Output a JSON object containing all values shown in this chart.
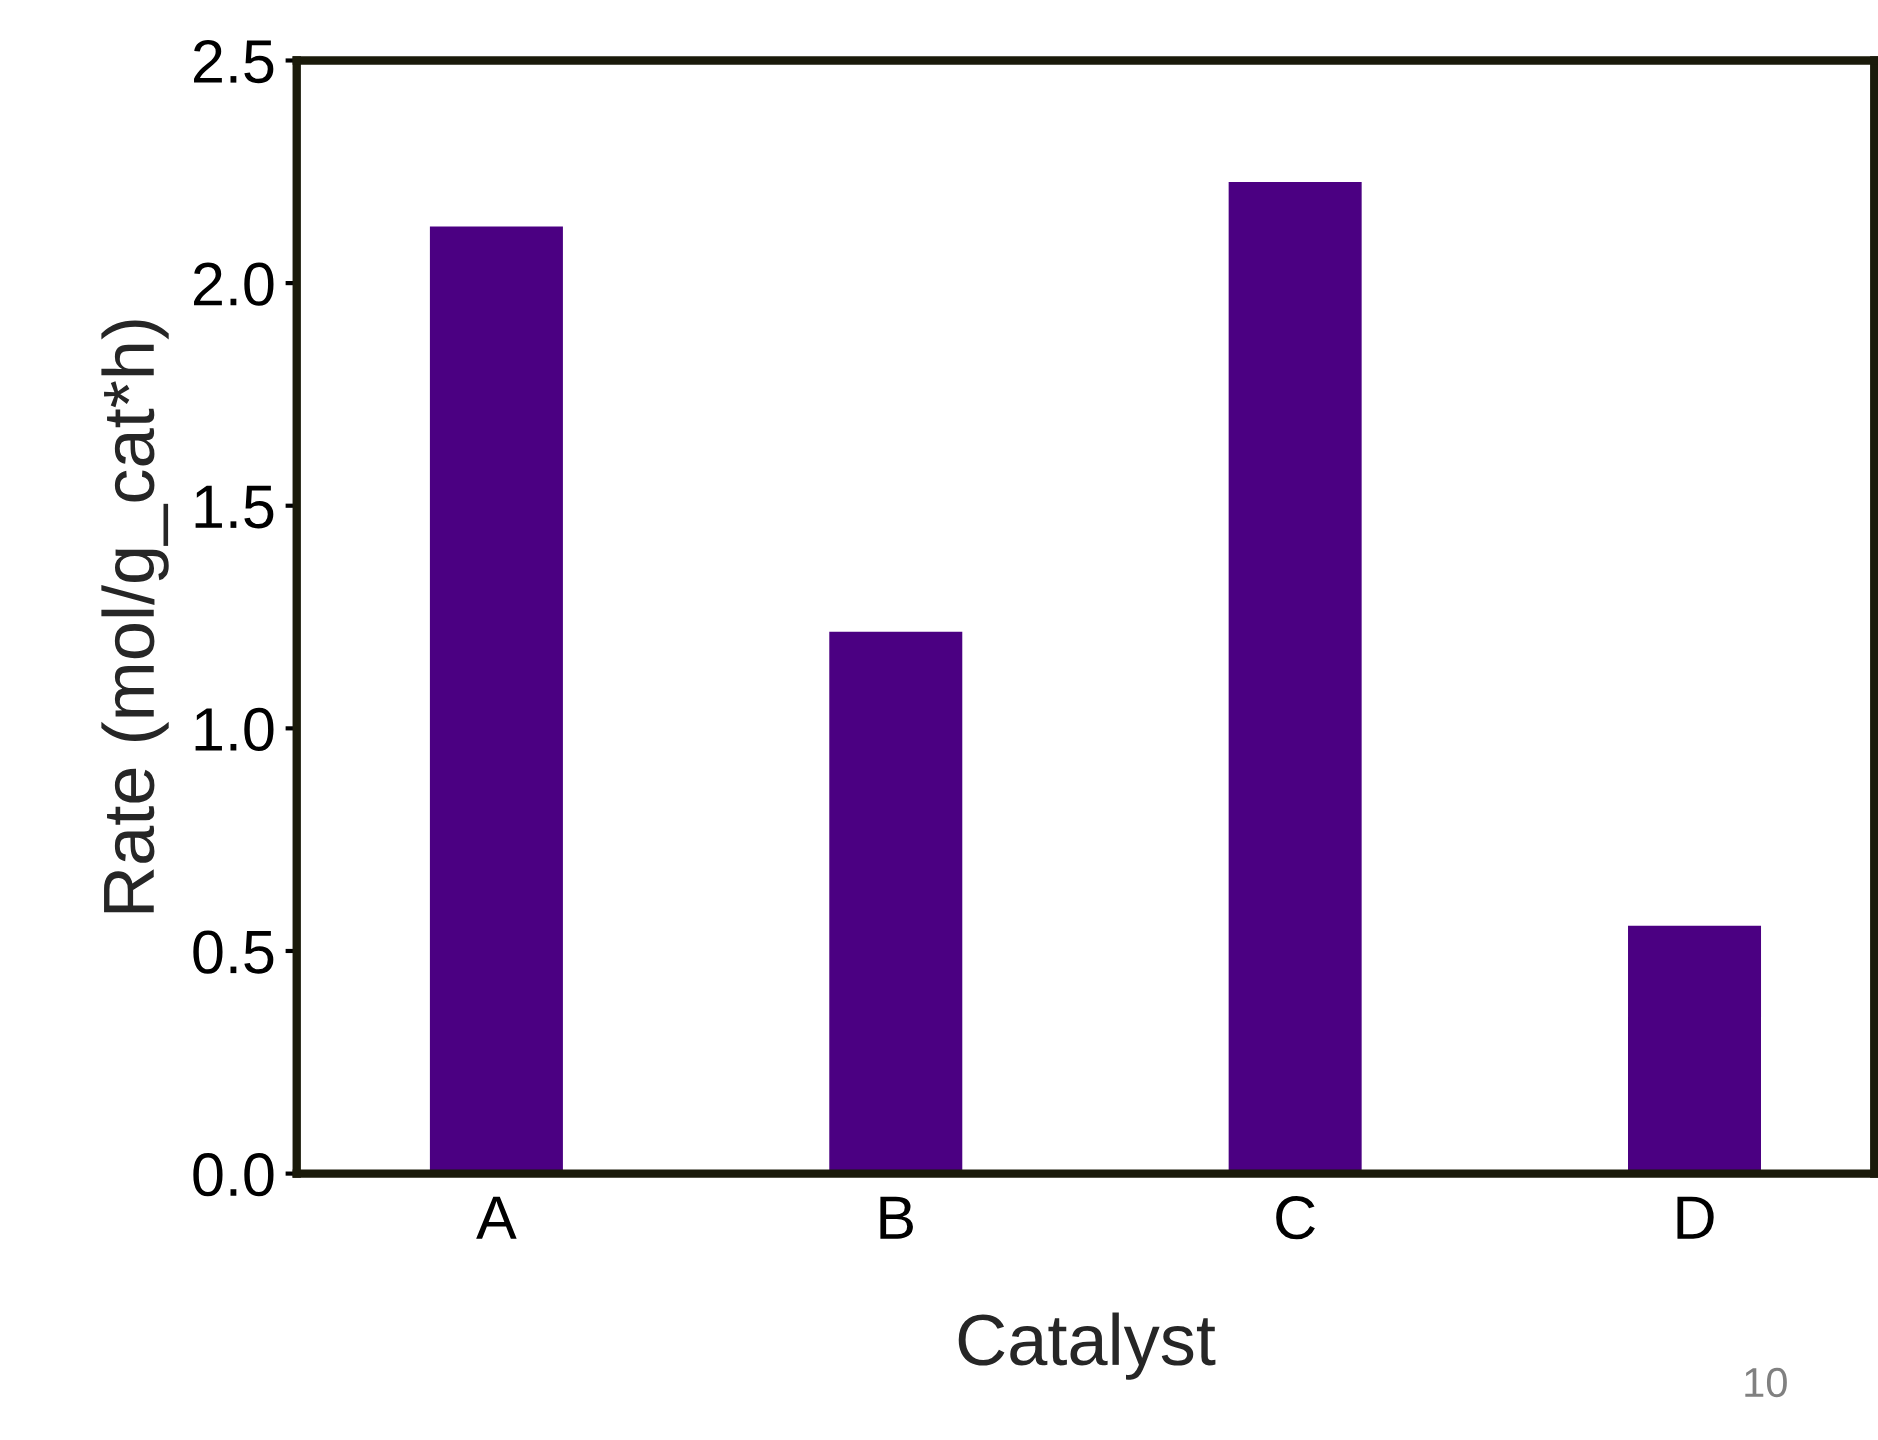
{
  "chart_data": {
    "type": "bar",
    "xlabel": "Catalyst",
    "ylabel": "Rate (mol/g_cat*h)",
    "categories": [
      "A",
      "B",
      "C",
      "D"
    ],
    "series": [
      {
        "color": "#4b0082",
        "values": [
          2.13,
          1.22,
          2.23,
          0.56
        ]
      }
    ],
    "ylim": [
      0,
      2.5
    ],
    "yticks": [
      {
        "value": 0,
        "label": "0.0"
      },
      {
        "value": 0.5,
        "label": "0.5"
      },
      {
        "value": 1,
        "label": "1.0"
      },
      {
        "value": 1.5,
        "label": "1.5"
      },
      {
        "value": 2,
        "label": "2.0"
      },
      {
        "value": 2.5,
        "label": "2.5"
      }
    ],
    "grid": false,
    "legend": false,
    "annotations": [
      "10"
    ]
  }
}
